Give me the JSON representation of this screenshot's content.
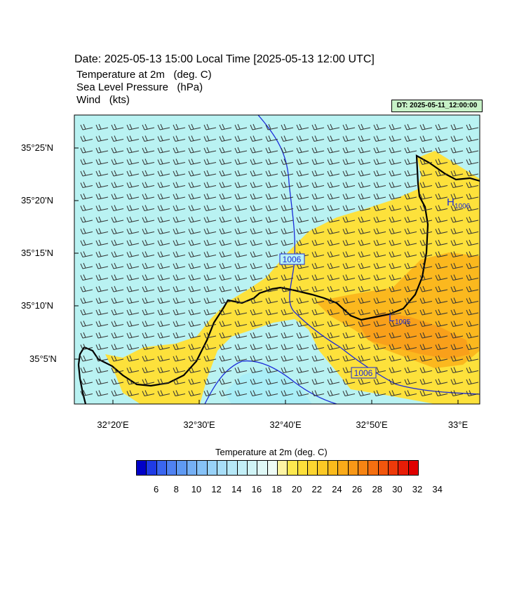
{
  "header": {
    "date_title": "Date: 2025-05-13  15:00 Local Time [2025-05-13  12:00 UTC]",
    "fields": [
      {
        "name": "Temperature at 2m",
        "unit": "(deg. C)"
      },
      {
        "name": "Sea Level Pressure",
        "unit": "(hPa)"
      },
      {
        "name": "Wind",
        "unit": "(kts)"
      }
    ],
    "dt_badge": "DT: 2025-05-11_12:00:00"
  },
  "map": {
    "lat_labels": [
      "35°25'N",
      "35°20'N",
      "35°15'N",
      "35°10'N",
      "35°5'N"
    ],
    "lon_labels": [
      "32°20'E",
      "32°30'E",
      "32°40'E",
      "32°50'E",
      "33°E"
    ],
    "isobar_labels": [
      {
        "text": "1006"
      },
      {
        "text": "1006"
      }
    ],
    "pressure_centers": [
      {
        "symbol": "H",
        "value": "1006"
      },
      {
        "symbol": "L",
        "value": "1005"
      }
    ],
    "colors": {
      "sea": "#b9f2f2",
      "land_warm": "#fde13b",
      "land_hot": "#fbb41c",
      "land_hotter": "#f9a01a",
      "isobar": "#1b2bd9",
      "coast": "#000000"
    }
  },
  "colorbar": {
    "title": "Temperature at 2m  (deg. C)",
    "labels": [
      "6",
      "8",
      "10",
      "12",
      "14",
      "16",
      "18",
      "20",
      "22",
      "24",
      "26",
      "28",
      "30",
      "32",
      "34"
    ],
    "colors": [
      "#0000c8",
      "#1f3be6",
      "#3a66f0",
      "#4f82f2",
      "#5f9af3",
      "#75b0f5",
      "#86c2f7",
      "#98d2f8",
      "#a8def8",
      "#b6e8f7",
      "#c3eff7",
      "#d0f4f6",
      "#dff8f6",
      "#eefbf6",
      "#fdf4a3",
      "#fde94f",
      "#fde03a",
      "#fcd530",
      "#fcc925",
      "#fbbb1c",
      "#fbab19",
      "#f99817",
      "#f78413",
      "#f56f10",
      "#f2560d",
      "#ee3a0a",
      "#e81d07",
      "#e00000"
    ]
  }
}
